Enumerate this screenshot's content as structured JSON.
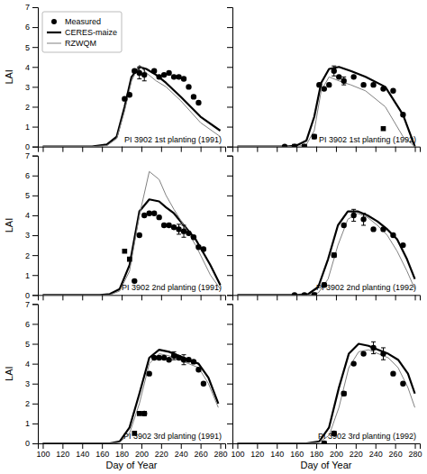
{
  "chart_data": [
    {
      "type": "line",
      "annotation": "PI 3902 1st planting (1991)",
      "ylabel": "LAI",
      "xlim": [
        95,
        285
      ],
      "ylim": [
        0,
        7
      ],
      "xticks": [
        100,
        120,
        140,
        160,
        180,
        200,
        220,
        240,
        260,
        280
      ],
      "yticks": [
        0,
        1,
        2,
        3,
        4,
        5,
        6,
        7
      ],
      "tick_labels": "y",
      "legend": "upper left",
      "series": [
        {
          "name": "Measured",
          "type": "scatter",
          "marker": "circle",
          "color": "black",
          "x": [
            183,
            188,
            193,
            198,
            203,
            213,
            218,
            223,
            228,
            233,
            238,
            243,
            248,
            253,
            258
          ],
          "values": [
            2.4,
            2.6,
            3.8,
            3.7,
            3.6,
            3.8,
            3.5,
            3.6,
            3.7,
            3.5,
            3.5,
            3.4,
            3.0,
            2.5,
            2.2
          ],
          "errors": [
            null,
            null,
            null,
            0.3,
            0.3,
            null,
            null,
            null,
            null,
            null,
            null,
            null,
            null,
            null,
            null
          ]
        },
        {
          "name": "CERES-maize",
          "type": "line",
          "color": "black",
          "x": [
            100,
            150,
            165,
            175,
            183,
            190,
            198,
            205,
            215,
            225,
            240,
            260,
            280
          ],
          "values": [
            0,
            0,
            0.1,
            0.5,
            2.0,
            3.5,
            4.0,
            3.9,
            3.6,
            3.2,
            2.5,
            1.5,
            0.8
          ]
        },
        {
          "name": "RZWQM",
          "type": "line",
          "color": "gray",
          "x": [
            100,
            150,
            165,
            175,
            183,
            190,
            198,
            205,
            215,
            225,
            240,
            260,
            280
          ],
          "values": [
            0,
            0,
            0.05,
            0.4,
            1.8,
            3.3,
            4.1,
            3.7,
            3.3,
            3.0,
            2.3,
            1.2,
            0.5
          ]
        }
      ]
    },
    {
      "type": "line",
      "annotation": "PI 3902 1st planting (1992)",
      "xlim": [
        95,
        285
      ],
      "ylim": [
        0,
        7
      ],
      "xticks": [
        100,
        120,
        140,
        160,
        180,
        200,
        220,
        240,
        260,
        280
      ],
      "yticks": [
        0,
        1,
        2,
        3,
        4,
        5,
        6,
        7
      ],
      "tick_labels": false,
      "series": [
        {
          "name": "Measured",
          "type": "scatter",
          "marker": "circle",
          "color": "black",
          "x": [
            148,
            158,
            168,
            178,
            183,
            188,
            193,
            198,
            203,
            208,
            218,
            228,
            238,
            248,
            258,
            268
          ],
          "values": [
            0.0,
            0.0,
            0.0,
            0.5,
            3.1,
            2.9,
            3.1,
            3.8,
            3.5,
            3.3,
            3.5,
            3.1,
            3.1,
            2.9,
            2.8,
            1.6
          ],
          "errors": [
            null,
            null,
            null,
            null,
            null,
            null,
            null,
            0.25,
            null,
            0.2,
            null,
            null,
            null,
            null,
            null,
            null
          ]
        },
        {
          "name": "CERES-maize",
          "type": "line",
          "color": "black",
          "x": [
            100,
            150,
            160,
            170,
            178,
            185,
            193,
            203,
            215,
            230,
            250,
            268,
            280
          ],
          "values": [
            0,
            0,
            0.05,
            0.3,
            1.5,
            3.2,
            3.9,
            4.0,
            3.8,
            3.5,
            3.0,
            1.6,
            0.0
          ]
        },
        {
          "name": "RZWQM",
          "type": "line",
          "color": "gray",
          "x": [
            100,
            150,
            160,
            170,
            178,
            185,
            193,
            203,
            215,
            230,
            250,
            268,
            280
          ],
          "values": [
            0,
            0,
            0.0,
            0.1,
            0.8,
            2.8,
            3.5,
            3.3,
            3.1,
            2.8,
            2.0,
            0.5,
            0.0
          ]
        },
        {
          "type": "scatter",
          "marker": "square",
          "color": "black",
          "x": [
            158,
            168,
            178,
            248
          ],
          "values": [
            0.0,
            0.0,
            0.5,
            0.9
          ]
        }
      ]
    },
    {
      "type": "line",
      "annotation": "PI 3902 2nd planting (1991)",
      "ylabel": "LAI",
      "xlim": [
        95,
        285
      ],
      "ylim": [
        0,
        7
      ],
      "xticks": [
        100,
        120,
        140,
        160,
        180,
        200,
        220,
        240,
        260,
        280
      ],
      "yticks": [
        0,
        1,
        2,
        3,
        4,
        5,
        6,
        7
      ],
      "tick_labels": "y",
      "series": [
        {
          "name": "Measured",
          "type": "scatter",
          "marker": "circle",
          "color": "black",
          "x": [
            193,
            198,
            203,
            208,
            213,
            218,
            223,
            228,
            233,
            238,
            243,
            248,
            253,
            258,
            263
          ],
          "values": [
            0.7,
            3.0,
            4.0,
            4.1,
            4.1,
            3.9,
            3.5,
            3.5,
            3.4,
            3.3,
            3.2,
            3.1,
            2.9,
            2.4,
            2.3
          ],
          "errors": [
            null,
            null,
            null,
            null,
            null,
            null,
            null,
            null,
            null,
            0.25,
            0.3,
            null,
            null,
            null,
            null
          ]
        },
        {
          "name": "CERES-maize",
          "type": "line",
          "color": "black",
          "x": [
            100,
            158,
            168,
            178,
            188,
            198,
            208,
            218,
            225,
            233,
            243,
            255,
            270,
            280
          ],
          "values": [
            0,
            0,
            0.05,
            0.3,
            1.5,
            4.2,
            4.8,
            4.7,
            4.4,
            4.1,
            3.5,
            2.8,
            1.5,
            0.5
          ]
        },
        {
          "name": "RZWQM",
          "type": "line",
          "color": "gray",
          "x": [
            100,
            158,
            168,
            178,
            188,
            198,
            208,
            218,
            225,
            233,
            243,
            255,
            270,
            280
          ],
          "values": [
            0,
            0,
            0.0,
            0.2,
            1.2,
            4.0,
            6.2,
            5.8,
            5.0,
            4.3,
            3.5,
            2.5,
            1.0,
            0.3
          ]
        },
        {
          "type": "scatter",
          "marker": "square",
          "color": "black",
          "x": [
            183,
            188
          ],
          "values": [
            2.2,
            1.8
          ]
        }
      ]
    },
    {
      "type": "line",
      "annotation": "PI 3902 2nd planting (1992)",
      "xlim": [
        95,
        285
      ],
      "ylim": [
        0,
        7
      ],
      "xticks": [
        100,
        120,
        140,
        160,
        180,
        200,
        220,
        240,
        260,
        280
      ],
      "yticks": [
        0,
        1,
        2,
        3,
        4,
        5,
        6,
        7
      ],
      "tick_labels": false,
      "series": [
        {
          "name": "Measured",
          "type": "scatter",
          "marker": "circle",
          "color": "black",
          "x": [
            158,
            168,
            178,
            188,
            198,
            208,
            218,
            228,
            238,
            248,
            258,
            268
          ],
          "values": [
            0.0,
            0.0,
            0.0,
            0.5,
            2.0,
            3.5,
            4.0,
            3.8,
            3.3,
            3.3,
            3.0,
            2.5
          ],
          "errors": [
            null,
            null,
            null,
            null,
            null,
            null,
            0.3,
            0.3,
            null,
            null,
            null,
            null
          ]
        },
        {
          "name": "CERES-maize",
          "type": "line",
          "color": "black",
          "x": [
            100,
            160,
            172,
            182,
            192,
            202,
            212,
            222,
            232,
            242,
            252,
            262,
            272,
            280
          ],
          "values": [
            0,
            0,
            0.05,
            0.4,
            1.8,
            3.5,
            4.2,
            4.2,
            4.0,
            3.7,
            3.3,
            2.8,
            1.8,
            0.8
          ]
        },
        {
          "name": "RZWQM",
          "type": "line",
          "color": "gray",
          "x": [
            100,
            160,
            172,
            182,
            192,
            202,
            212,
            222,
            232,
            242,
            252,
            262,
            272,
            280
          ],
          "values": [
            0,
            0,
            0.0,
            0.1,
            0.8,
            2.5,
            3.8,
            4.1,
            3.9,
            3.5,
            3.0,
            2.2,
            1.2,
            0.3
          ]
        },
        {
          "type": "scatter",
          "marker": "square",
          "color": "black",
          "x": [
            178,
            188,
            198
          ],
          "values": [
            0.0,
            0.5,
            2.0
          ]
        }
      ]
    },
    {
      "type": "line",
      "annotation": "PI 3902 3rd planting (1991)",
      "ylabel": "LAI",
      "xlabel": "Day of Year",
      "xlim": [
        95,
        285
      ],
      "ylim": [
        0,
        7
      ],
      "xticks": [
        100,
        120,
        140,
        160,
        180,
        200,
        220,
        240,
        260,
        280
      ],
      "yticks": [
        0,
        1,
        2,
        3,
        4,
        5,
        6,
        7
      ],
      "series": [
        {
          "name": "Measured",
          "type": "scatter",
          "marker": "circle",
          "color": "black",
          "x": [
            203,
            208,
            213,
            218,
            223,
            228,
            233,
            238,
            243,
            248,
            253,
            258,
            263
          ],
          "values": [
            1.5,
            3.5,
            4.3,
            4.3,
            4.3,
            4.2,
            4.4,
            4.3,
            4.2,
            4.2,
            4.1,
            3.7,
            3.0
          ],
          "errors": [
            null,
            null,
            null,
            null,
            null,
            null,
            0.2,
            null,
            0.25,
            null,
            null,
            null,
            null
          ]
        },
        {
          "name": "CERES-maize",
          "type": "line",
          "color": "black",
          "x": [
            100,
            168,
            178,
            188,
            198,
            208,
            218,
            228,
            238,
            248,
            258,
            268,
            278
          ],
          "values": [
            0,
            0,
            0.1,
            0.8,
            2.5,
            4.3,
            4.7,
            4.6,
            4.4,
            4.2,
            4.0,
            3.3,
            2.0
          ]
        },
        {
          "name": "RZWQM",
          "type": "line",
          "color": "gray",
          "x": [
            100,
            168,
            178,
            188,
            198,
            208,
            218,
            228,
            238,
            248,
            258,
            268,
            278
          ],
          "values": [
            0,
            0,
            0.05,
            0.5,
            2.0,
            4.0,
            4.5,
            4.4,
            4.2,
            4.0,
            3.8,
            3.0,
            1.8
          ]
        },
        {
          "type": "scatter",
          "marker": "square",
          "color": "black",
          "x": [
            193,
            198,
            203
          ],
          "values": [
            0.5,
            1.5,
            1.5
          ]
        }
      ]
    },
    {
      "type": "line",
      "annotation": "PI 3902 3rd planting (1992)",
      "xlabel": "Day of Year",
      "xlim": [
        95,
        285
      ],
      "ylim": [
        0,
        7
      ],
      "xticks": [
        100,
        120,
        140,
        160,
        180,
        200,
        220,
        240,
        260,
        280
      ],
      "yticks": [
        0,
        1,
        2,
        3,
        4,
        5,
        6,
        7
      ],
      "tick_labels": "x",
      "series": [
        {
          "name": "Measured",
          "type": "scatter",
          "marker": "circle",
          "color": "black",
          "x": [
            188,
            198,
            208,
            218,
            228,
            238,
            248,
            258,
            268
          ],
          "values": [
            0.0,
            0.5,
            2.5,
            4.0,
            4.5,
            4.8,
            4.5,
            3.5,
            3.0
          ],
          "errors": [
            null,
            null,
            null,
            null,
            null,
            0.3,
            0.3,
            null,
            null
          ]
        },
        {
          "name": "CERES-maize",
          "type": "line",
          "color": "black",
          "x": [
            100,
            170,
            183,
            193,
            203,
            213,
            223,
            233,
            243,
            253,
            263,
            273,
            280
          ],
          "values": [
            0,
            0,
            0.1,
            0.8,
            2.8,
            4.5,
            5.0,
            4.9,
            4.7,
            4.5,
            4.2,
            3.5,
            2.5
          ]
        },
        {
          "name": "RZWQM",
          "type": "line",
          "color": "gray",
          "x": [
            100,
            170,
            183,
            193,
            203,
            213,
            223,
            233,
            243,
            253,
            263,
            273,
            280
          ],
          "values": [
            0,
            0,
            0.05,
            0.4,
            1.8,
            3.8,
            4.6,
            4.7,
            4.5,
            4.3,
            3.8,
            2.8,
            1.8
          ]
        },
        {
          "type": "scatter",
          "marker": "square",
          "color": "black",
          "x": [
            188,
            198,
            208
          ],
          "values": [
            0.0,
            0.5,
            2.5
          ]
        }
      ]
    }
  ]
}
